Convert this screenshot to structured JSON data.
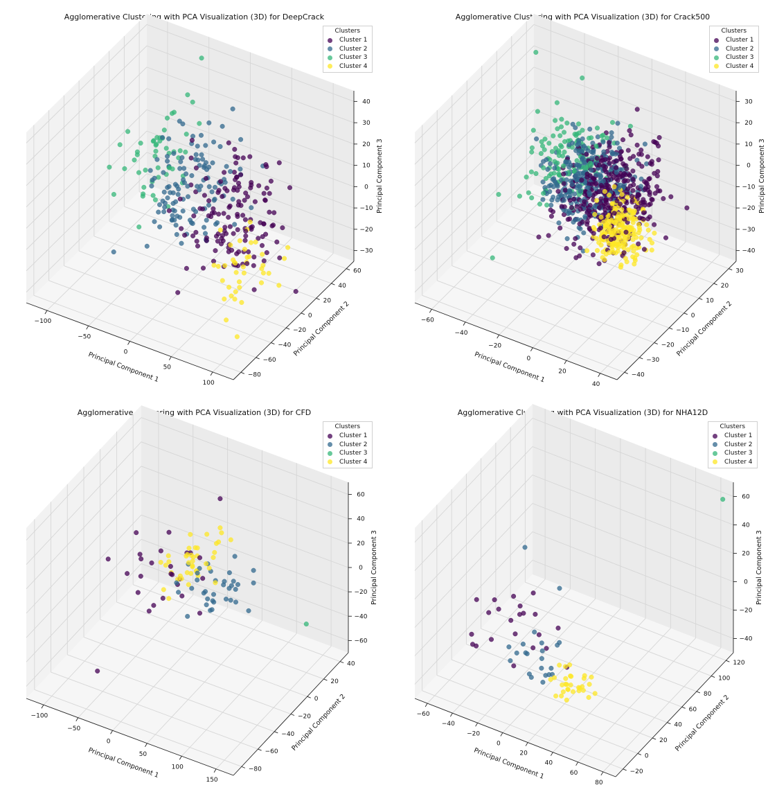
{
  "colors": {
    "pane_left": "#f2f2f2",
    "pane_right": "#ebebeb",
    "pane_floor": "#f6f6f6",
    "grid": "#d6d6d6",
    "cluster_1": "#440154",
    "cluster_2": "#31688e",
    "cluster_3": "#35b779",
    "cluster_4": "#fde725"
  },
  "chart_data": [
    {
      "type": "scatter",
      "title": "Agglomerative Clustering with PCA Visualization (3D) for DeepCrack",
      "xlabel": "Principal Component 1",
      "ylabel": "Principal Component 2",
      "zlabel": "Principal Component 3",
      "legend_title": "Clusters",
      "legend_position": "top-right",
      "grid": true,
      "xlim": [
        -130,
        130
      ],
      "ylim": [
        -80,
        60
      ],
      "zlim": [
        -35,
        45
      ],
      "xticks": [
        "−100",
        "−50",
        "0",
        "50",
        "100"
      ],
      "yticks": [
        "−80",
        "−60",
        "−40",
        "−20",
        "0",
        "20",
        "40",
        "60"
      ],
      "zticks": [
        "−30",
        "−20",
        "−10",
        "0",
        "10",
        "20",
        "30",
        "40"
      ],
      "series": [
        {
          "name": "Cluster 1",
          "n_points": 140,
          "center": [
            45,
            0,
            0
          ],
          "spread": [
            22,
            22,
            12
          ]
        },
        {
          "name": "Cluster 2",
          "n_points": 120,
          "center": [
            -15,
            5,
            3
          ],
          "spread": [
            20,
            20,
            11
          ]
        },
        {
          "name": "Cluster 3",
          "n_points": 50,
          "center": [
            -60,
            10,
            5
          ],
          "spread": [
            18,
            18,
            10
          ],
          "extra": [
            [
              -45,
              45,
              42
            ],
            [
              -40,
              30,
              28
            ]
          ]
        },
        {
          "name": "Cluster 4",
          "n_points": 40,
          "center": [
            85,
            -25,
            -8
          ],
          "spread": [
            16,
            16,
            9
          ]
        }
      ]
    },
    {
      "type": "scatter",
      "title": "Agglomerative Clustering with PCA Visualization (3D) for Crack500",
      "xlabel": "Principal Component 1",
      "ylabel": "Principal Component 2",
      "zlabel": "Principal Component 3",
      "legend_title": "Clusters",
      "legend_position": "top-right",
      "grid": true,
      "xlim": [
        -70,
        55
      ],
      "ylim": [
        -45,
        35
      ],
      "zlim": [
        -40,
        33
      ],
      "xticks": [
        "−60",
        "−40",
        "−20",
        "0",
        "20",
        "40"
      ],
      "yticks": [
        "−40",
        "−30",
        "−20",
        "−10",
        "0",
        "10",
        "20",
        "30"
      ],
      "zticks": [
        "−40",
        "−30",
        "−20",
        "−10",
        "0",
        "10",
        "20",
        "30"
      ],
      "series": [
        {
          "name": "Cluster 1",
          "n_points": 380,
          "center": [
            10,
            0,
            -2
          ],
          "spread": [
            12,
            10,
            9
          ]
        },
        {
          "name": "Cluster 2",
          "n_points": 300,
          "center": [
            -5,
            2,
            0
          ],
          "spread": [
            10,
            9,
            8
          ]
        },
        {
          "name": "Cluster 3",
          "n_points": 140,
          "center": [
            -22,
            6,
            2
          ],
          "spread": [
            10,
            9,
            8
          ],
          "extra": [
            [
              -55,
              20,
              30
            ],
            [
              -55,
              -5,
              -15
            ],
            [
              -45,
              -20,
              -30
            ]
          ]
        },
        {
          "name": "Cluster 4",
          "n_points": 200,
          "center": [
            22,
            -8,
            -8
          ],
          "spread": [
            7,
            6,
            6
          ]
        }
      ]
    },
    {
      "type": "scatter",
      "title": "Agglomerative Clustering with PCA Visualization (3D) for CFD",
      "xlabel": "Principal Component 1",
      "ylabel": "Principal Component 2",
      "zlabel": "Principal Component 3",
      "legend_title": "Clusters",
      "legend_position": "top-right",
      "grid": true,
      "xlim": [
        -130,
        180
      ],
      "ylim": [
        -80,
        50
      ],
      "zlim": [
        -60,
        60
      ],
      "xticks": [
        "−100",
        "−50",
        "0",
        "50",
        "100",
        "150"
      ],
      "yticks": [
        "−80",
        "−60",
        "−40",
        "−20",
        "0",
        "20",
        "40"
      ],
      "zticks": [
        "−60",
        "−40",
        "−20",
        "0",
        "20",
        "40",
        "60"
      ],
      "series": [
        {
          "name": "Cluster 1",
          "n_points": 25,
          "center": [
            -25,
            0,
            5
          ],
          "spread": [
            30,
            20,
            15
          ],
          "extra": [
            [
              -50,
              -60,
              -40
            ]
          ]
        },
        {
          "name": "Cluster 2",
          "n_points": 35,
          "center": [
            50,
            0,
            -5
          ],
          "spread": [
            25,
            12,
            8
          ]
        },
        {
          "name": "Cluster 3",
          "n_points": 0,
          "center": [
            0,
            0,
            0
          ],
          "spread": [
            0,
            0,
            0
          ],
          "extra": [
            [
              170,
              10,
              -15
            ]
          ]
        },
        {
          "name": "Cluster 4",
          "n_points": 40,
          "center": [
            5,
            5,
            5
          ],
          "spread": [
            18,
            12,
            8
          ]
        }
      ]
    },
    {
      "type": "scatter",
      "title": "Agglomerative Clustering with PCA Visualization (3D) for NHA12D",
      "xlabel": "Principal Component 1",
      "ylabel": "Principal Component 2",
      "zlabel": "Principal Component 3",
      "legend_title": "Clusters",
      "legend_position": "top-right",
      "grid": true,
      "xlim": [
        -70,
        80
      ],
      "ylim": [
        -25,
        125
      ],
      "zlim": [
        -40,
        70
      ],
      "xticks": [
        "−60",
        "−40",
        "−20",
        "0",
        "20",
        "40",
        "60",
        "80"
      ],
      "yticks": [
        "−20",
        "0",
        "20",
        "40",
        "60",
        "80",
        "100",
        "120"
      ],
      "zticks": [
        "−40",
        "−20",
        "0",
        "20",
        "40",
        "60"
      ],
      "series": [
        {
          "name": "Cluster 1",
          "n_points": 22,
          "center": [
            -25,
            20,
            0
          ],
          "spread": [
            18,
            15,
            10
          ]
        },
        {
          "name": "Cluster 2",
          "n_points": 20,
          "center": [
            0,
            10,
            -10
          ],
          "spread": [
            10,
            8,
            6
          ],
          "extra": [
            [
              -20,
              30,
              45
            ],
            [
              0,
              40,
              20
            ]
          ]
        },
        {
          "name": "Cluster 3",
          "n_points": 0,
          "center": [
            0,
            0,
            0
          ],
          "spread": [
            0,
            0,
            0
          ],
          "extra": [
            [
              75,
              120,
              60
            ]
          ]
        },
        {
          "name": "Cluster 4",
          "n_points": 30,
          "center": [
            30,
            5,
            -15
          ],
          "spread": [
            8,
            8,
            5
          ]
        }
      ]
    }
  ]
}
